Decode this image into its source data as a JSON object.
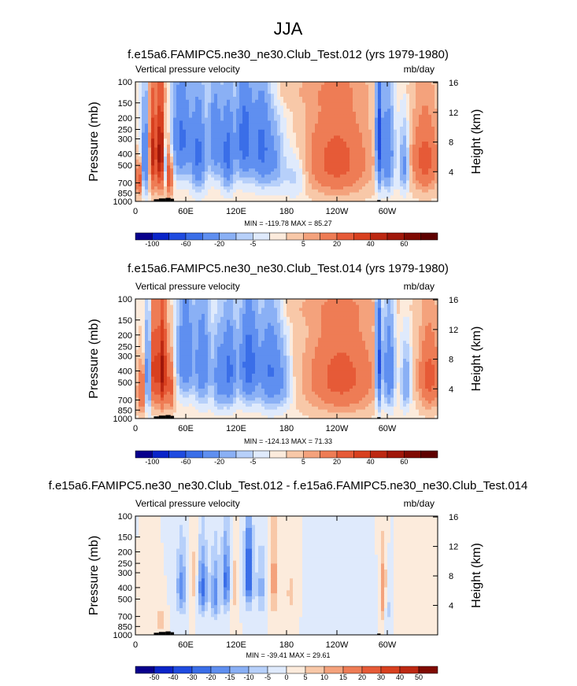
{
  "figure": {
    "title": "JJA"
  },
  "chart_data": [
    {
      "type": "heatmap",
      "title": "f.e15a6.FAMIPC5.ne30_ne30.Club_Test.012 (yrs 1979-1980)",
      "left_label": "Vertical pressure velocity",
      "units": "mb/day",
      "ylabel": "Pressure (mb)",
      "ylabel_right": "Height (km)",
      "x_ticks": [
        {
          "lon": 0,
          "label": "0"
        },
        {
          "lon": 60,
          "label": "60E"
        },
        {
          "lon": 120,
          "label": "120E"
        },
        {
          "lon": 180,
          "label": "180"
        },
        {
          "lon": 240,
          "label": "120W"
        },
        {
          "lon": 300,
          "label": "60W"
        }
      ],
      "xlim": [
        0,
        360
      ],
      "y_ticks": [
        {
          "p": 100,
          "label": "100"
        },
        {
          "p": 150,
          "label": "150"
        },
        {
          "p": 200,
          "label": "200"
        },
        {
          "p": 250,
          "label": "250"
        },
        {
          "p": 300,
          "label": "300"
        },
        {
          "p": 400,
          "label": "400"
        },
        {
          "p": 500,
          "label": "500"
        },
        {
          "p": 700,
          "label": "700"
        },
        {
          "p": 850,
          "label": "850"
        },
        {
          "p": 1000,
          "label": "1000"
        }
      ],
      "ylim": [
        1000,
        100
      ],
      "height_ticks": [
        {
          "km": 16,
          "label": "16"
        },
        {
          "km": 12,
          "label": "12"
        },
        {
          "km": 8,
          "label": "8"
        },
        {
          "km": 4,
          "label": "4"
        }
      ],
      "stats": "MIN = -119.78  MAX =  85.27",
      "colorbar": {
        "levels": [
          "-100",
          "-80",
          "-60",
          "-40",
          "-20",
          "-10",
          "-5",
          "-1",
          "1",
          "5",
          "10",
          "20",
          "30",
          "40",
          "50",
          "60",
          "80"
        ],
        "labels": [
          "-100",
          "",
          "-60",
          "",
          "-20",
          "",
          "-5",
          "",
          "",
          "5",
          "",
          "20",
          "",
          "40",
          "",
          "60",
          ""
        ],
        "colors": [
          "#08008c",
          "#0a24c8",
          "#1f4be0",
          "#3a6ee8",
          "#5f8ff0",
          "#8ab0f5",
          "#b7d0fa",
          "#dfeafc",
          "#fcebdc",
          "#f8c8a8",
          "#f4a27c",
          "#ee7c55",
          "#e65a37",
          "#d8401f",
          "#bd2812",
          "#a0170a",
          "#800a02",
          "#5e0000"
        ]
      },
      "field": [
        {
          "lon": 5,
          "p": 650,
          "r": [
            4,
            200
          ],
          "v": 30
        },
        {
          "lon": 12,
          "p": 450,
          "r": [
            5,
            300
          ],
          "v": -40
        },
        {
          "lon": 20,
          "p": 400,
          "r": [
            4,
            320
          ],
          "v": 45
        },
        {
          "lon": 30,
          "p": 400,
          "r": [
            5,
            320
          ],
          "v": 60
        },
        {
          "lon": 35,
          "p": 500,
          "r": [
            3,
            250
          ],
          "v": -30
        },
        {
          "lon": 40,
          "p": 600,
          "r": [
            4,
            250
          ],
          "v": 30
        },
        {
          "lon": 55,
          "p": 300,
          "r": [
            10,
            250
          ],
          "v": -45
        },
        {
          "lon": 75,
          "p": 400,
          "r": [
            8,
            300
          ],
          "v": -45
        },
        {
          "lon": 95,
          "p": 300,
          "r": [
            7,
            250
          ],
          "v": -35
        },
        {
          "lon": 110,
          "p": 400,
          "r": [
            7,
            280
          ],
          "v": -50
        },
        {
          "lon": 130,
          "p": 300,
          "r": [
            9,
            260
          ],
          "v": -55
        },
        {
          "lon": 150,
          "p": 350,
          "r": [
            10,
            280
          ],
          "v": -45
        },
        {
          "lon": 165,
          "p": 450,
          "r": [
            10,
            250
          ],
          "v": -20
        },
        {
          "lon": 190,
          "p": 600,
          "r": [
            15,
            250
          ],
          "v": -8
        },
        {
          "lon": 240,
          "p": 450,
          "r": [
            35,
            350
          ],
          "v": 25
        },
        {
          "lon": 290,
          "p": 300,
          "r": [
            3,
            350
          ],
          "v": -70
        },
        {
          "lon": 300,
          "p": 400,
          "r": [
            7,
            300
          ],
          "v": -40
        },
        {
          "lon": 320,
          "p": 500,
          "r": [
            5,
            250
          ],
          "v": -25
        },
        {
          "lon": 345,
          "p": 450,
          "r": [
            15,
            300
          ],
          "v": 25
        },
        {
          "lon": 200,
          "p": 120,
          "r": [
            120,
            40
          ],
          "v": 3
        }
      ]
    },
    {
      "type": "heatmap",
      "title": "f.e15a6.FAMIPC5.ne30_ne30.Club_Test.014 (yrs 1979-1980)",
      "left_label": "Vertical pressure velocity",
      "units": "mb/day",
      "ylabel": "Pressure (mb)",
      "ylabel_right": "Height (km)",
      "x_ticks": [
        {
          "lon": 0,
          "label": "0"
        },
        {
          "lon": 60,
          "label": "60E"
        },
        {
          "lon": 120,
          "label": "120E"
        },
        {
          "lon": 180,
          "label": "180"
        },
        {
          "lon": 240,
          "label": "120W"
        },
        {
          "lon": 300,
          "label": "60W"
        }
      ],
      "xlim": [
        0,
        360
      ],
      "y_ticks": [
        {
          "p": 100,
          "label": "100"
        },
        {
          "p": 150,
          "label": "150"
        },
        {
          "p": 200,
          "label": "200"
        },
        {
          "p": 250,
          "label": "250"
        },
        {
          "p": 300,
          "label": "300"
        },
        {
          "p": 400,
          "label": "400"
        },
        {
          "p": 500,
          "label": "500"
        },
        {
          "p": 700,
          "label": "700"
        },
        {
          "p": 850,
          "label": "850"
        },
        {
          "p": 1000,
          "label": "1000"
        }
      ],
      "ylim": [
        1000,
        100
      ],
      "height_ticks": [
        {
          "km": 16,
          "label": "16"
        },
        {
          "km": 12,
          "label": "12"
        },
        {
          "km": 8,
          "label": "8"
        },
        {
          "km": 4,
          "label": "4"
        }
      ],
      "stats": "MIN = -124.13  MAX =  71.33",
      "colorbar": {
        "levels": [
          "-100",
          "-80",
          "-60",
          "-40",
          "-20",
          "-10",
          "-5",
          "-1",
          "1",
          "5",
          "10",
          "20",
          "30",
          "40",
          "50",
          "60",
          "80"
        ],
        "labels": [
          "-100",
          "",
          "-60",
          "",
          "-20",
          "",
          "-5",
          "",
          "",
          "5",
          "",
          "20",
          "",
          "40",
          "",
          "60",
          ""
        ],
        "colors": [
          "#08008c",
          "#0a24c8",
          "#1f4be0",
          "#3a6ee8",
          "#5f8ff0",
          "#8ab0f5",
          "#b7d0fa",
          "#dfeafc",
          "#fcebdc",
          "#f8c8a8",
          "#f4a27c",
          "#ee7c55",
          "#e65a37",
          "#d8401f",
          "#bd2812",
          "#a0170a",
          "#800a02",
          "#5e0000"
        ]
      },
      "field": [
        {
          "lon": 8,
          "p": 600,
          "r": [
            5,
            250
          ],
          "v": 25
        },
        {
          "lon": 15,
          "p": 450,
          "r": [
            4,
            300
          ],
          "v": -35
        },
        {
          "lon": 22,
          "p": 400,
          "r": [
            4,
            300
          ],
          "v": 40
        },
        {
          "lon": 32,
          "p": 400,
          "r": [
            5,
            320
          ],
          "v": 55
        },
        {
          "lon": 42,
          "p": 550,
          "r": [
            4,
            250
          ],
          "v": 25
        },
        {
          "lon": 60,
          "p": 300,
          "r": [
            9,
            250
          ],
          "v": -40
        },
        {
          "lon": 80,
          "p": 350,
          "r": [
            8,
            300
          ],
          "v": -35
        },
        {
          "lon": 100,
          "p": 450,
          "r": [
            7,
            280
          ],
          "v": -30
        },
        {
          "lon": 112,
          "p": 400,
          "r": [
            7,
            280
          ],
          "v": -45
        },
        {
          "lon": 135,
          "p": 350,
          "r": [
            10,
            280
          ],
          "v": -55
        },
        {
          "lon": 160,
          "p": 400,
          "r": [
            12,
            300
          ],
          "v": -40
        },
        {
          "lon": 175,
          "p": 500,
          "r": [
            10,
            250
          ],
          "v": -15
        },
        {
          "lon": 245,
          "p": 450,
          "r": [
            38,
            350
          ],
          "v": 25
        },
        {
          "lon": 290,
          "p": 350,
          "r": [
            3,
            350
          ],
          "v": -70
        },
        {
          "lon": 302,
          "p": 400,
          "r": [
            6,
            300
          ],
          "v": -40
        },
        {
          "lon": 322,
          "p": 500,
          "r": [
            5,
            250
          ],
          "v": -20
        },
        {
          "lon": 350,
          "p": 450,
          "r": [
            12,
            300
          ],
          "v": 25
        },
        {
          "lon": 210,
          "p": 120,
          "r": [
            120,
            40
          ],
          "v": 3
        }
      ]
    },
    {
      "type": "heatmap",
      "title": "f.e15a6.FAMIPC5.ne30_ne30.Club_Test.012 - f.e15a6.FAMIPC5.ne30_ne30.Club_Test.014",
      "left_label": "Vertical pressure velocity",
      "units": "mb/day",
      "ylabel": "Pressure (mb)",
      "ylabel_right": "Height (km)",
      "x_ticks": [
        {
          "lon": 0,
          "label": "0"
        },
        {
          "lon": 60,
          "label": "60E"
        },
        {
          "lon": 120,
          "label": "120E"
        },
        {
          "lon": 180,
          "label": "180"
        },
        {
          "lon": 240,
          "label": "120W"
        },
        {
          "lon": 300,
          "label": "60W"
        }
      ],
      "xlim": [
        0,
        360
      ],
      "y_ticks": [
        {
          "p": 100,
          "label": "100"
        },
        {
          "p": 150,
          "label": "150"
        },
        {
          "p": 200,
          "label": "200"
        },
        {
          "p": 250,
          "label": "250"
        },
        {
          "p": 300,
          "label": "300"
        },
        {
          "p": 400,
          "label": "400"
        },
        {
          "p": 500,
          "label": "500"
        },
        {
          "p": 700,
          "label": "700"
        },
        {
          "p": 850,
          "label": "850"
        },
        {
          "p": 1000,
          "label": "1000"
        }
      ],
      "ylim": [
        1000,
        100
      ],
      "height_ticks": [
        {
          "km": 16,
          "label": "16"
        },
        {
          "km": 12,
          "label": "12"
        },
        {
          "km": 8,
          "label": "8"
        },
        {
          "km": 4,
          "label": "4"
        }
      ],
      "stats": "MIN = -39.41  MAX =  29.61",
      "colorbar": {
        "levels": [
          "-50",
          "-40",
          "-30",
          "-20",
          "-15",
          "-10",
          "-5",
          "0",
          "5",
          "10",
          "15",
          "20",
          "30",
          "40",
          "50"
        ],
        "labels": [
          "-50",
          "-40",
          "-30",
          "-20",
          "-15",
          "-10",
          "-5",
          "0",
          "5",
          "10",
          "15",
          "20",
          "30",
          "40",
          "50"
        ],
        "colors": [
          "#08008c",
          "#0a24c8",
          "#1f4be0",
          "#3a6ee8",
          "#5f8ff0",
          "#8ab0f5",
          "#b7d0fa",
          "#dfeafc",
          "#fcebdc",
          "#f8c8a8",
          "#f4a27c",
          "#ee7c55",
          "#e65a37",
          "#d8401f",
          "#bd2812",
          "#800a02"
        ]
      },
      "field": [
        {
          "lon": 30,
          "p": 750,
          "r": [
            4,
            150
          ],
          "v": 12
        },
        {
          "lon": 55,
          "p": 400,
          "r": [
            6,
            250
          ],
          "v": -18
        },
        {
          "lon": 70,
          "p": 350,
          "r": [
            5,
            250
          ],
          "v": 8
        },
        {
          "lon": 80,
          "p": 400,
          "r": [
            6,
            250
          ],
          "v": -22
        },
        {
          "lon": 95,
          "p": 450,
          "r": [
            5,
            280
          ],
          "v": -18
        },
        {
          "lon": 108,
          "p": 350,
          "r": [
            5,
            250
          ],
          "v": -22
        },
        {
          "lon": 118,
          "p": 400,
          "r": [
            4,
            250
          ],
          "v": 8
        },
        {
          "lon": 135,
          "p": 300,
          "r": [
            5,
            250
          ],
          "v": -28
        },
        {
          "lon": 150,
          "p": 400,
          "r": [
            6,
            250
          ],
          "v": -12
        },
        {
          "lon": 165,
          "p": 350,
          "r": [
            4,
            300
          ],
          "v": 14
        },
        {
          "lon": 185,
          "p": 450,
          "r": [
            8,
            300
          ],
          "v": 6
        },
        {
          "lon": 240,
          "p": 500,
          "r": [
            30,
            300
          ],
          "v": -4
        },
        {
          "lon": 295,
          "p": 450,
          "r": [
            4,
            300
          ],
          "v": 16
        },
        {
          "lon": 300,
          "p": 600,
          "r": [
            4,
            250
          ],
          "v": -8
        },
        {
          "lon": 330,
          "p": 500,
          "r": [
            10,
            300
          ],
          "v": 5
        }
      ]
    }
  ]
}
